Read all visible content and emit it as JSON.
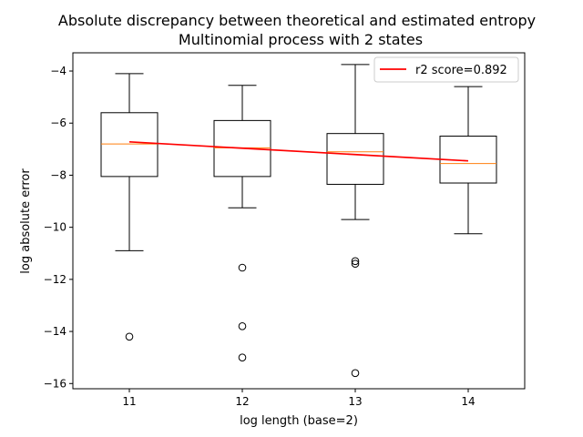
{
  "chart_data": {
    "type": "box",
    "title": "Absolute discrepancy between theoretical and estimated entropy",
    "subtitle": "Multinomial process with 2 states",
    "xlabel": "log length (base=2)",
    "ylabel": "log absolute error",
    "xlim": [
      10.5,
      14.5
    ],
    "ylim": [
      -16.2,
      -3.3
    ],
    "xticks": [
      11,
      12,
      13,
      14
    ],
    "yticks": [
      -16,
      -14,
      -12,
      -10,
      -8,
      -6,
      -4
    ],
    "ytick_labels": [
      "−16",
      "−14",
      "−12",
      "−10",
      "−8",
      "−6",
      "−4"
    ],
    "boxes": [
      {
        "x": 11,
        "whisker_low": -10.9,
        "q1": -8.05,
        "median": -6.8,
        "q3": -5.6,
        "whisker_high": -4.1,
        "outliers": [
          -14.2
        ]
      },
      {
        "x": 12,
        "whisker_low": -9.25,
        "q1": -8.05,
        "median": -6.95,
        "q3": -5.9,
        "whisker_high": -4.55,
        "outliers": [
          -11.55,
          -13.8,
          -15.0
        ]
      },
      {
        "x": 13,
        "whisker_low": -9.7,
        "q1": -8.35,
        "median": -7.1,
        "q3": -6.4,
        "whisker_high": -3.75,
        "outliers": [
          -11.3,
          -11.4,
          -15.6
        ]
      },
      {
        "x": 14,
        "whisker_low": -10.25,
        "q1": -8.3,
        "median": -7.55,
        "q3": -6.5,
        "whisker_high": -4.6,
        "outliers": []
      }
    ],
    "series": [
      {
        "name": "r2 score=0.892",
        "type": "line",
        "x": [
          11,
          14
        ],
        "y": [
          -6.72,
          -7.45
        ],
        "color": "#ff0000"
      }
    ],
    "median_color": "#ff7f0e",
    "box_color": "#000000",
    "grid": false,
    "legend_position": "top-right"
  }
}
